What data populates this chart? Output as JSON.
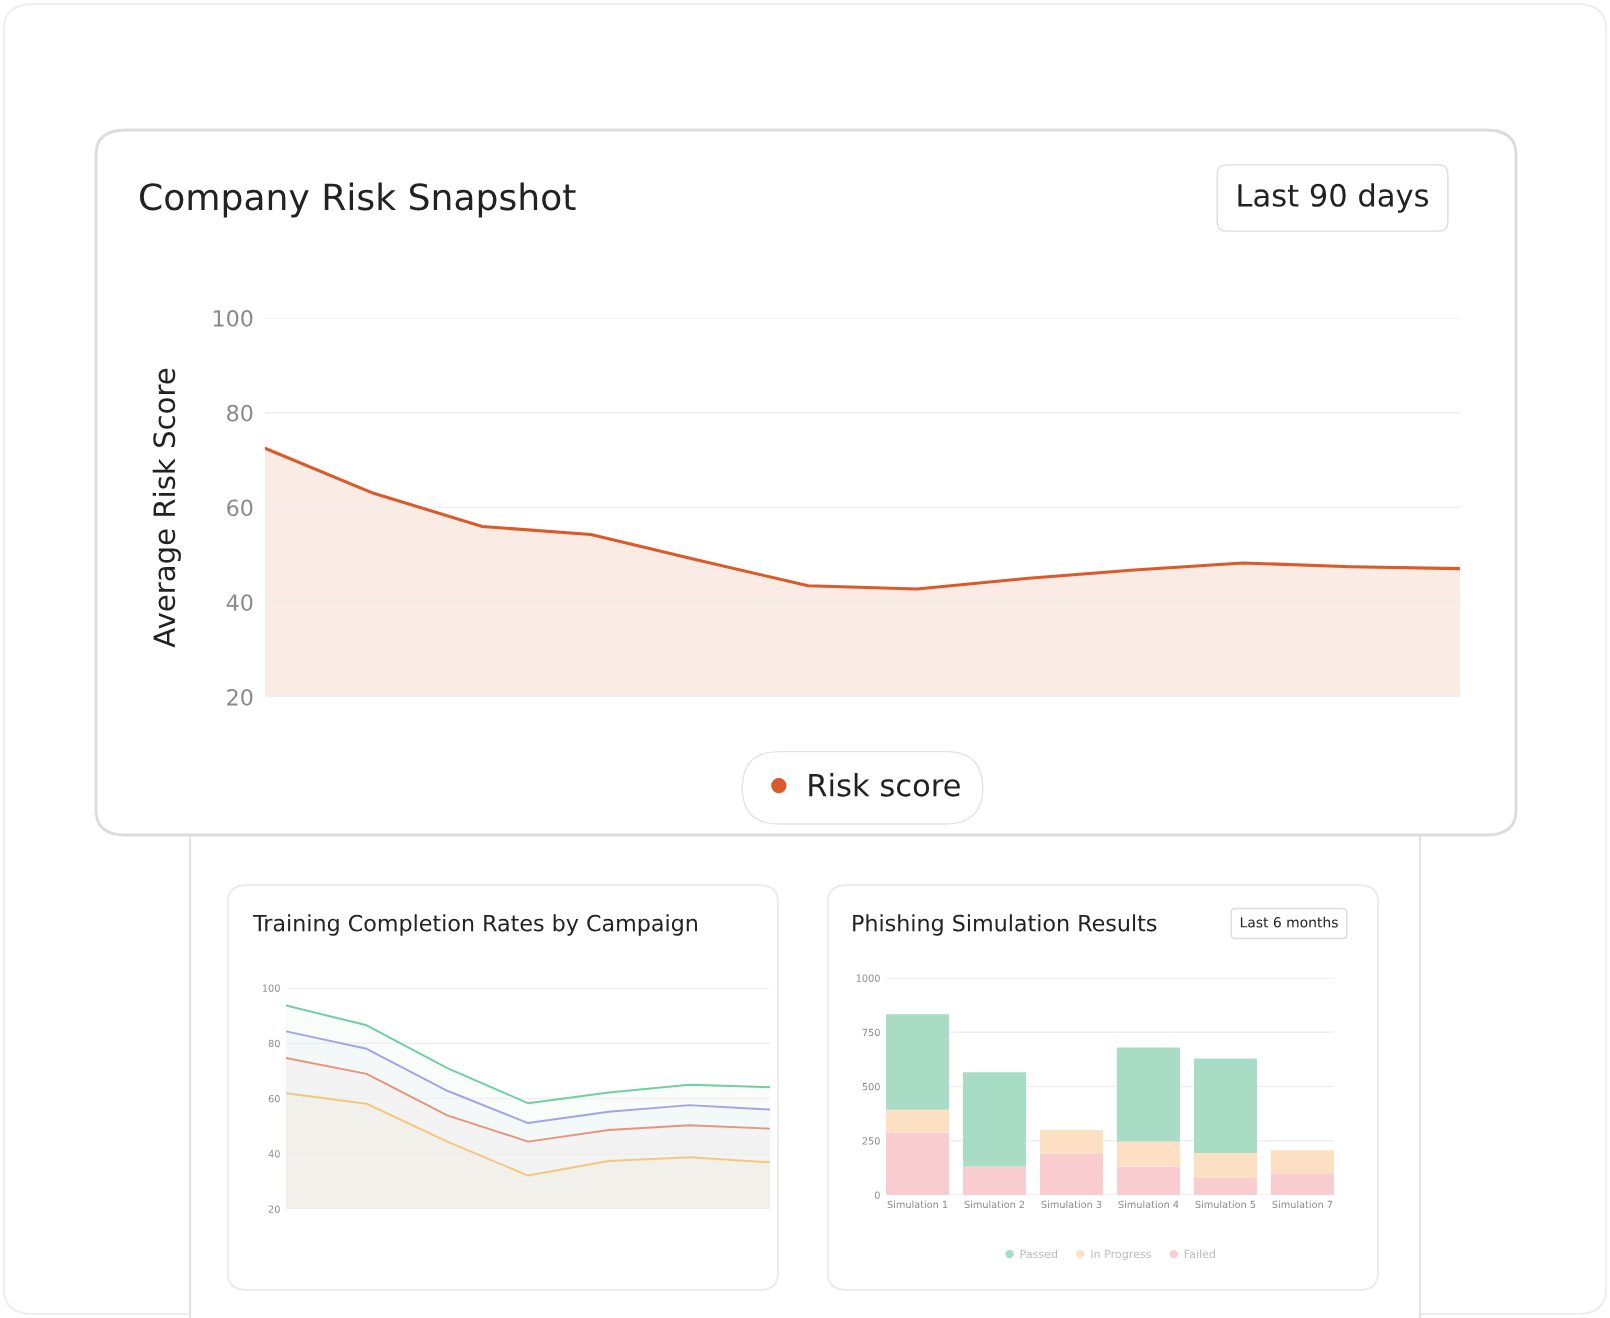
{
  "chart_data": [
    {
      "type": "area",
      "title": "Company Risk Snapshot",
      "ylabel": "Average Risk Score",
      "categories": [
        null,
        null,
        null,
        null,
        null,
        null,
        null,
        null,
        null,
        null,
        null,
        null
      ],
      "series": [
        {
          "name": "Risk score",
          "color": "#d95a2b",
          "values": [
            72.5,
            63,
            56,
            54.3,
            48.8,
            43.5,
            42.8,
            45,
            46.8,
            48.3,
            47.5,
            47.1
          ]
        }
      ],
      "ylim": [
        20,
        100
      ],
      "yticks": [
        20,
        40,
        60,
        80,
        100
      ],
      "grid": "y",
      "legend": "bottom",
      "annotations": [
        "Last 90 days"
      ]
    },
    {
      "type": "area",
      "title": "Training Completion Rates by Campaign",
      "categories": [
        null,
        null,
        null,
        null,
        null,
        null,
        null
      ],
      "series": [
        {
          "color": "#6fcfa5",
          "values": [
            93.7,
            86.5,
            71,
            58.3,
            62.2,
            65,
            64.1
          ]
        },
        {
          "color": "#a3a3e8",
          "values": [
            84.3,
            78,
            62.8,
            51.1,
            55.2,
            57.6,
            56
          ]
        },
        {
          "color": "#e8947a",
          "values": [
            74.7,
            68.9,
            53.9,
            44.4,
            48.6,
            50.3,
            49.1
          ]
        },
        {
          "color": "#f5c77e",
          "values": [
            61.9,
            58.1,
            44.4,
            32.1,
            37.4,
            38.7,
            36.9
          ]
        }
      ],
      "ylim": [
        20,
        100
      ],
      "yticks": [
        20,
        40,
        60,
        80,
        100
      ],
      "grid": "y"
    },
    {
      "type": "bar",
      "stacked": true,
      "title": "Phishing Simulation Results",
      "categories": [
        "Simulation 1",
        "Simulation 2",
        "Simulation 3",
        "Simulation 4",
        "Simulation 5",
        "Simulation 7"
      ],
      "series": [
        {
          "name": "Failed",
          "color": "#f9cdd0",
          "values": [
            288,
            131,
            191,
            131,
            78,
            97
          ]
        },
        {
          "name": "In Progress",
          "color": "#fde0c4",
          "values": [
            105,
            0,
            108,
            115,
            115,
            109
          ]
        },
        {
          "name": "Passed",
          "color": "#a8dcc4",
          "values": [
            440,
            435,
            0,
            434,
            436,
            0
          ]
        }
      ],
      "ylim": [
        0,
        1000
      ],
      "yticks": [
        0,
        250,
        500,
        750,
        1000
      ],
      "grid": "y",
      "legend": "bottom",
      "annotations": [
        "Last 6 months"
      ]
    }
  ]
}
